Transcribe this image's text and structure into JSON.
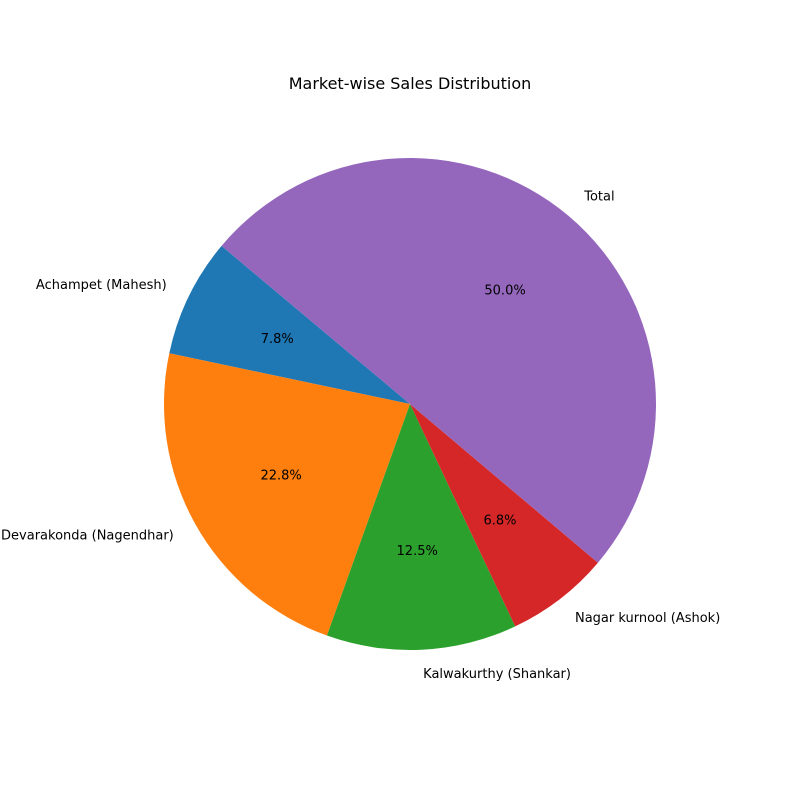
{
  "chart_data": {
    "type": "pie",
    "title": "Market-wise Sales Distribution",
    "start_angle_deg": 140,
    "direction": "counterclockwise",
    "slices": [
      {
        "label": "Achampet (Mahesh)",
        "value": 7.8,
        "pct_label": "7.8%",
        "color": "#1f77b4"
      },
      {
        "label": "Devarakonda (Nagendhar)",
        "value": 22.8,
        "pct_label": "22.8%",
        "color": "#ff7f0e"
      },
      {
        "label": "Kalwakurthy (Shankar)",
        "value": 12.5,
        "pct_label": "12.5%",
        "color": "#2ca02c"
      },
      {
        "label": "Nagar kurnool (Ashok)",
        "value": 6.8,
        "pct_label": "6.8%",
        "color": "#d62728"
      },
      {
        "label": "Total",
        "value": 50.0,
        "pct_label": "50.0%",
        "color": "#9467bd"
      }
    ]
  }
}
